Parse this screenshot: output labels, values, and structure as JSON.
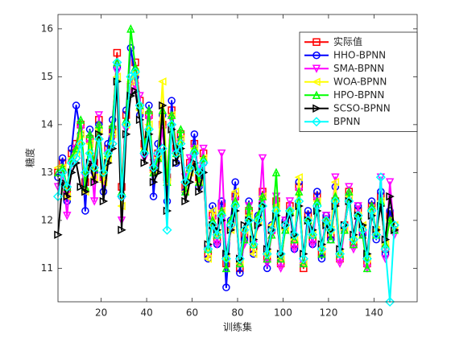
{
  "chart_data": {
    "type": "line",
    "xlabel": "训练集",
    "ylabel": "糖度",
    "x": [
      1,
      3,
      5,
      7,
      9,
      11,
      13,
      15,
      17,
      19,
      21,
      23,
      25,
      27,
      29,
      31,
      33,
      35,
      37,
      39,
      41,
      43,
      45,
      47,
      49,
      51,
      53,
      55,
      57,
      59,
      61,
      63,
      65,
      67,
      69,
      71,
      73,
      75,
      77,
      79,
      81,
      83,
      85,
      87,
      89,
      91,
      93,
      95,
      97,
      99,
      101,
      103,
      105,
      107,
      109,
      111,
      113,
      115,
      117,
      119,
      121,
      123,
      125,
      127,
      129,
      131,
      133,
      135,
      137,
      139,
      141,
      143,
      145,
      147,
      149
    ],
    "xlim": [
      1,
      159
    ],
    "xticks": [
      20,
      40,
      60,
      80,
      100,
      120,
      140
    ],
    "ylim": [
      10.3,
      16.3
    ],
    "yticks": [
      11,
      12,
      13,
      14,
      15,
      16
    ],
    "legend": "upper right",
    "series": [
      {
        "name": "实际值",
        "color": "#ff0000",
        "marker": "square",
        "values": [
          13.0,
          13.2,
          12.6,
          13.4,
          13.6,
          14.0,
          12.8,
          13.7,
          13.2,
          14.1,
          12.9,
          13.5,
          13.9,
          15.5,
          12.7,
          14.2,
          14.8,
          15.3,
          14.5,
          13.6,
          14.2,
          13.1,
          13.4,
          14.0,
          12.9,
          14.3,
          13.5,
          13.8,
          12.7,
          13.2,
          13.6,
          12.9,
          13.4,
          11.3,
          12.1,
          11.6,
          12.3,
          11.1,
          11.9,
          12.5,
          11.0,
          11.7,
          12.2,
          11.4,
          12.0,
          12.6,
          11.2,
          11.8,
          12.4,
          11.1,
          11.9,
          12.3,
          11.5,
          12.7,
          11.0,
          12.1,
          11.6,
          12.5,
          11.3,
          12.0,
          11.7,
          12.4,
          11.2,
          11.9,
          12.6,
          11.5,
          12.2,
          11.8,
          11.1,
          12.3,
          11.7,
          12.5,
          11.4,
          12.1,
          11.8
        ]
      },
      {
        "name": "HHO-BPNN",
        "color": "#0000ff",
        "marker": "circle",
        "values": [
          12.9,
          13.3,
          12.4,
          13.5,
          14.4,
          13.8,
          12.2,
          13.9,
          13.0,
          14.0,
          12.6,
          13.6,
          14.1,
          15.2,
          12.5,
          14.3,
          15.6,
          15.0,
          14.2,
          13.4,
          14.4,
          12.5,
          13.6,
          14.2,
          12.4,
          14.5,
          13.2,
          13.7,
          12.6,
          13.1,
          13.8,
          12.7,
          13.2,
          11.2,
          12.3,
          11.5,
          12.4,
          10.6,
          12.0,
          12.8,
          10.9,
          11.6,
          12.4,
          11.3,
          12.1,
          12.5,
          11.0,
          11.9,
          12.3,
          11.2,
          12.0,
          12.2,
          11.4,
          12.8,
          11.1,
          12.2,
          11.5,
          12.6,
          11.2,
          12.1,
          11.6,
          12.7,
          11.3,
          11.8,
          12.5,
          11.6,
          12.3,
          11.7,
          11.2,
          12.4,
          11.6,
          12.6,
          11.3,
          12.2,
          11.9
        ]
      },
      {
        "name": "SMA-BPNN",
        "color": "#ff00ff",
        "marker": "triangle-down",
        "values": [
          12.7,
          13.0,
          12.1,
          13.2,
          13.5,
          13.9,
          12.9,
          13.6,
          12.4,
          14.2,
          12.8,
          13.4,
          13.7,
          15.1,
          12.0,
          13.9,
          14.7,
          14.8,
          14.6,
          13.3,
          14.1,
          13.2,
          13.2,
          13.9,
          13.0,
          14.1,
          13.4,
          13.6,
          12.9,
          13.3,
          13.5,
          13.0,
          13.5,
          11.4,
          12.0,
          11.5,
          13.4,
          11.2,
          11.8,
          12.4,
          11.1,
          11.5,
          12.3,
          11.5,
          11.9,
          13.3,
          11.1,
          11.7,
          12.5,
          11.0,
          12.0,
          12.4,
          11.4,
          12.6,
          11.1,
          12.0,
          11.5,
          12.4,
          11.4,
          12.1,
          11.8,
          12.9,
          11.1,
          11.8,
          12.7,
          11.4,
          12.3,
          11.7,
          11.0,
          12.2,
          11.8,
          12.9,
          11.2,
          12.8,
          11.7
        ]
      },
      {
        "name": "WOA-BPNN",
        "color": "#ffff00",
        "marker": "triangle-left",
        "values": [
          13.1,
          13.1,
          12.5,
          13.3,
          13.4,
          13.8,
          12.6,
          13.6,
          12.9,
          13.9,
          12.8,
          13.3,
          13.8,
          15.0,
          12.3,
          14.0,
          14.9,
          15.1,
          14.3,
          13.5,
          14.0,
          13.0,
          13.3,
          14.9,
          12.8,
          14.2,
          13.4,
          13.7,
          12.6,
          13.0,
          13.5,
          12.8,
          13.3,
          11.2,
          12.2,
          11.7,
          12.2,
          11.2,
          11.8,
          12.6,
          11.1,
          11.8,
          12.1,
          11.3,
          12.0,
          12.5,
          11.3,
          11.9,
          12.3,
          11.2,
          11.8,
          12.2,
          11.6,
          12.9,
          11.1,
          12.0,
          11.7,
          12.4,
          11.4,
          11.9,
          11.8,
          12.8,
          11.3,
          11.8,
          12.5,
          11.6,
          12.1,
          11.9,
          11.2,
          12.2,
          11.8,
          12.4,
          11.5,
          12.0,
          11.9
        ]
      },
      {
        "name": "HPO-BPNN",
        "color": "#00ff00",
        "marker": "triangle-up",
        "values": [
          13.0,
          13.1,
          12.7,
          13.3,
          13.5,
          14.1,
          12.7,
          13.8,
          13.1,
          14.0,
          13.0,
          13.4,
          14.0,
          15.3,
          12.6,
          14.1,
          16.0,
          15.2,
          14.4,
          13.5,
          14.3,
          13.0,
          13.3,
          14.3,
          12.8,
          14.2,
          13.4,
          13.9,
          12.6,
          13.1,
          13.5,
          12.8,
          13.3,
          11.4,
          12.0,
          11.7,
          12.2,
          11.0,
          12.0,
          12.4,
          11.1,
          11.6,
          12.3,
          11.5,
          12.1,
          12.5,
          11.2,
          11.7,
          13.0,
          11.2,
          11.8,
          12.2,
          11.6,
          12.6,
          11.1,
          12.0,
          11.7,
          12.4,
          11.3,
          12.0,
          11.6,
          12.5,
          11.3,
          11.8,
          12.6,
          11.5,
          12.1,
          11.7,
          11.0,
          12.3,
          11.7,
          12.4,
          11.5,
          12.0,
          11.8
        ]
      },
      {
        "name": "SCSO-BPNN",
        "color": "#000000",
        "marker": "triangle-right",
        "values": [
          11.7,
          12.8,
          12.5,
          13.0,
          13.2,
          12.7,
          12.6,
          13.2,
          12.8,
          13.8,
          12.4,
          13.2,
          13.5,
          14.9,
          11.8,
          13.8,
          14.6,
          14.7,
          14.1,
          13.2,
          13.8,
          12.8,
          13.0,
          14.4,
          12.2,
          13.9,
          13.2,
          13.5,
          12.4,
          12.8,
          13.2,
          12.6,
          13.0,
          11.5,
          11.9,
          11.8,
          12.0,
          11.3,
          11.8,
          12.2,
          11.2,
          11.9,
          12.0,
          11.6,
          11.9,
          12.3,
          11.4,
          11.8,
          12.1,
          11.3,
          11.9,
          12.1,
          11.7,
          12.3,
          11.3,
          12.0,
          11.8,
          12.2,
          11.5,
          11.9,
          11.8,
          12.3,
          11.4,
          11.9,
          12.4,
          11.7,
          12.1,
          11.9,
          11.3,
          12.1,
          11.8,
          12.3,
          11.6,
          12.5,
          11.8
        ]
      },
      {
        "name": "BPNN",
        "color": "#00ffff",
        "marker": "diamond",
        "values": [
          12.5,
          13.0,
          12.7,
          13.2,
          13.3,
          13.6,
          13.0,
          13.4,
          13.1,
          13.7,
          13.0,
          13.4,
          13.6,
          15.3,
          12.5,
          14.0,
          15.0,
          15.1,
          14.4,
          13.4,
          13.9,
          13.1,
          13.4,
          13.5,
          11.8,
          14.0,
          13.4,
          13.6,
          12.8,
          13.1,
          13.4,
          13.0,
          13.2,
          11.4,
          11.9,
          11.7,
          12.1,
          11.2,
          11.9,
          12.3,
          11.2,
          11.8,
          12.0,
          11.5,
          12.0,
          12.3,
          11.3,
          11.8,
          12.2,
          11.3,
          11.9,
          12.2,
          11.7,
          12.4,
          11.2,
          12.0,
          11.7,
          12.3,
          11.4,
          12.0,
          11.8,
          12.4,
          11.3,
          11.9,
          12.4,
          11.6,
          12.1,
          11.8,
          11.2,
          12.2,
          11.7,
          12.9,
          11.4,
          10.3,
          11.9
        ]
      }
    ]
  }
}
